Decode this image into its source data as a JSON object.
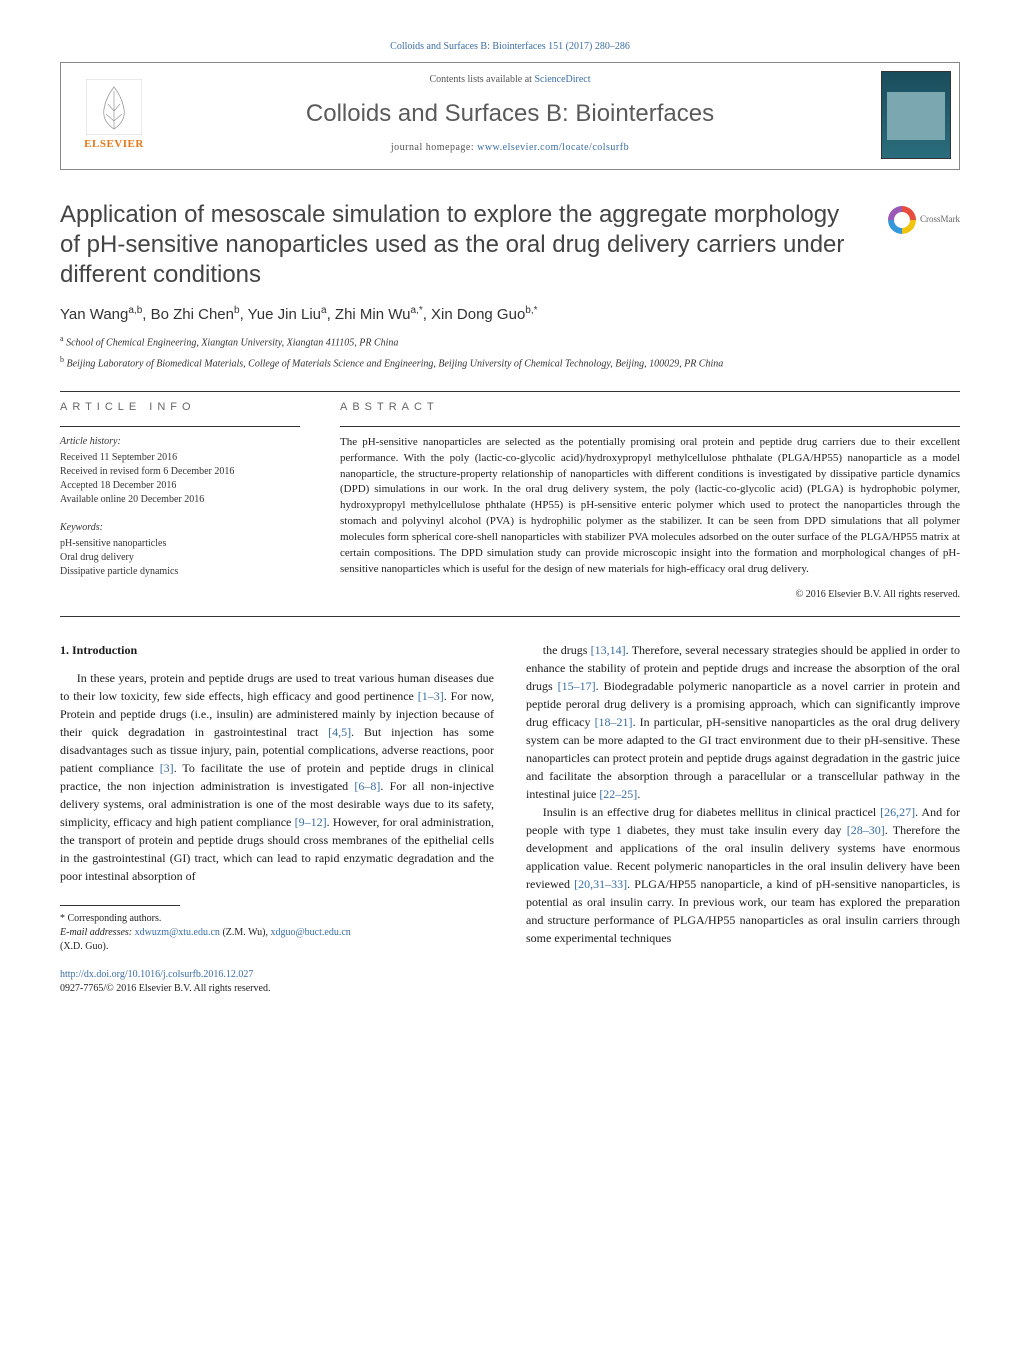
{
  "top_citation": "Colloids and Surfaces B: Biointerfaces 151 (2017) 280–286",
  "header": {
    "publisher": "ELSEVIER",
    "contents_prefix": "Contents lists available at ",
    "contents_link": "ScienceDirect",
    "journal_title": "Colloids and Surfaces B: Biointerfaces",
    "homepage_prefix": "journal homepage: ",
    "homepage_url": "www.elsevier.com/locate/colsurfb"
  },
  "crossmark_label": "CrossMark",
  "article": {
    "title": "Application of mesoscale simulation to explore the aggregate morphology of pH-sensitive nanoparticles used as the oral drug delivery carriers under different conditions",
    "authors_html": "Yan Wang<sup>a,b</sup>, Bo Zhi Chen<sup>b</sup>, Yue Jin Liu<sup>a</sup>, Zhi Min Wu<sup>a,*</sup>, Xin Dong Guo<sup>b,*</sup>",
    "affiliations": [
      {
        "marker": "a",
        "text": "School of Chemical Engineering, Xiangtan University, Xiangtan 411105, PR China"
      },
      {
        "marker": "b",
        "text": "Beijing Laboratory of Biomedical Materials, College of Materials Science and Engineering, Beijing University of Chemical Technology, Beijing, 100029, PR China"
      }
    ]
  },
  "info_label": "ARTICLE INFO",
  "history": {
    "label": "Article history:",
    "items": [
      "Received 11 September 2016",
      "Received in revised form 6 December 2016",
      "Accepted 18 December 2016",
      "Available online 20 December 2016"
    ]
  },
  "keywords": {
    "label": "Keywords:",
    "items": [
      "pH-sensitive nanoparticles",
      "Oral drug delivery",
      "Dissipative particle dynamics"
    ]
  },
  "abstract_label": "ABSTRACT",
  "abstract_text": "The pH-sensitive nanoparticles are selected as the potentially promising oral protein and peptide drug carriers due to their excellent performance. With the poly (lactic-co-glycolic acid)/hydroxypropyl methylcellulose phthalate (PLGA/HP55) nanoparticle as a model nanoparticle, the structure-property relationship of nanoparticles with different conditions is investigated by dissipative particle dynamics (DPD) simulations in our work. In the oral drug delivery system, the poly (lactic-co-glycolic acid) (PLGA) is hydrophobic polymer, hydroxypropyl methylcellulose phthalate (HP55) is pH-sensitive enteric polymer which used to protect the nanoparticles through the stomach and polyvinyl alcohol (PVA) is hydrophilic polymer as the stabilizer. It can be seen from DPD simulations that all polymer molecules form spherical core-shell nanoparticles with stabilizer PVA molecules adsorbed on the outer surface of the PLGA/HP55 matrix at certain compositions. The DPD simulation study can provide microscopic insight into the formation and morphological changes of pH-sensitive nanoparticles which is useful for the design of new materials for high-efficacy oral drug delivery.",
  "abstract_copyright": "© 2016 Elsevier B.V. All rights reserved.",
  "body": {
    "section_number": "1.",
    "section_title": "Introduction",
    "col1_p1": "In these years, protein and peptide drugs are used to treat various human diseases due to their low toxicity, few side effects, high efficacy and good pertinence [1–3]. For now, Protein and peptide drugs (i.e., insulin) are administered mainly by injection because of their quick degradation in gastrointestinal tract [4,5]. But injection has some disadvantages such as tissue injury, pain, potential complications, adverse reactions, poor patient compliance [3]. To facilitate the use of protein and peptide drugs in clinical practice, the non injection administration is investigated [6–8]. For all non-injective delivery systems, oral administration is one of the most desirable ways due to its safety, simplicity, efficacy and high patient compliance [9–12]. However, for oral administration, the transport of protein and peptide drugs should cross membranes of the epithelial cells in the gastrointestinal (GI) tract, which can lead to rapid enzymatic degradation and the poor intestinal absorption of",
    "col2_p1": "the drugs [13,14]. Therefore, several necessary strategies should be applied in order to enhance the stability of protein and peptide drugs and increase the absorption of the oral drugs [15–17]. Biodegradable polymeric nanoparticle as a novel carrier in protein and peptide peroral drug delivery is a promising approach, which can significantly improve drug efficacy [18–21]. In particular, pH-sensitive nanoparticles as the oral drug delivery system can be more adapted to the GI tract environment due to their pH-sensitive. These nanoparticles can protect protein and peptide drugs against degradation in the gastric juice and facilitate the absorption through a paracellular or a transcellular pathway in the intestinal juice [22–25].",
    "col2_p2": "Insulin is an effective drug for diabetes mellitus in clinical practicel [26,27]. And for people with type 1 diabetes, they must take insulin every day [28–30]. Therefore the development and applications of the oral insulin delivery systems have enormous application value. Recent polymeric nanoparticles in the oral insulin delivery have been reviewed [20,31–33]. PLGA/HP55 nanoparticle, a kind of pH-sensitive nanoparticles, is potential as oral insulin carry. In previous work, our team has explored the preparation and structure performance of PLGA/HP55 nanoparticles as oral insulin carriers through some experimental techniques"
  },
  "refs": {
    "r1": "[1–3]",
    "r2": "[4,5]",
    "r3": "[3]",
    "r4": "[6–8]",
    "r5": "[9–12]",
    "r6": "[13,14]",
    "r7": "[15–17]",
    "r8": "[18–21]",
    "r9": "[22–25]",
    "r10": "[26,27]",
    "r11": "[28–30]",
    "r12": "[20,31–33]"
  },
  "footnote": {
    "corresponding": "* Corresponding authors.",
    "email_label": "E-mail addresses: ",
    "email1": "xdwuzm@xtu.edu.cn",
    "email1_name": " (Z.M. Wu), ",
    "email2": "xdguo@buct.edu.cn",
    "email2_name": "(X.D. Guo)."
  },
  "doi": {
    "url": "http://dx.doi.org/10.1016/j.colsurfb.2016.12.027",
    "issn_line": "0927-7765/© 2016 Elsevier B.V. All rights reserved."
  },
  "colors": {
    "link": "#3a6ea5",
    "elsevier_orange": "#e67817",
    "heading_grey": "#5a5a5a",
    "text": "#1a1a1a"
  }
}
